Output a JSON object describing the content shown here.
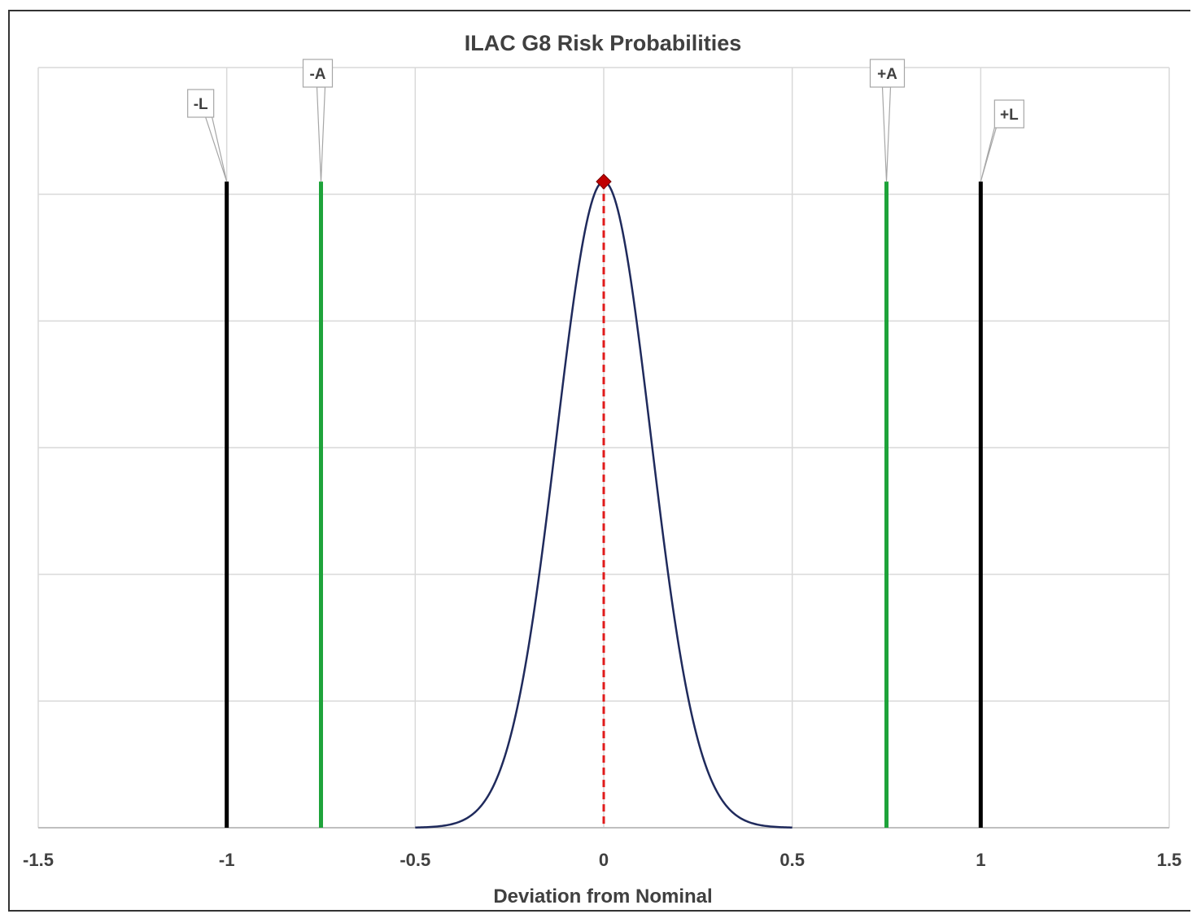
{
  "chart_data": {
    "type": "line",
    "title": "ILAC G8 Risk Probabilities",
    "xlabel": "Deviation from Nominal",
    "ylabel": "",
    "xlim": [
      -1.5,
      1.5
    ],
    "ylim": [
      0,
      1.2
    ],
    "x_ticks": [
      "-1.5",
      "-1",
      "-0.5",
      "0",
      "0.5",
      "1",
      "1.5"
    ],
    "x_tick_values": [
      -1.5,
      -1,
      -0.5,
      0,
      0.5,
      1,
      1.5
    ],
    "y_gridlines": [
      0.2,
      0.4,
      0.6,
      0.8,
      1.0,
      1.2
    ],
    "grid": true,
    "distribution": {
      "mean": 0,
      "sigma": 0.125,
      "x_range": [
        -0.5,
        0.5
      ],
      "peak": 1.02,
      "color": "#1f2a5c"
    },
    "mean_marker": {
      "x": 0,
      "y": 1.02,
      "color": "#c00000"
    },
    "limit_lines": [
      {
        "label": "-L",
        "x": -1,
        "y_top": 1.02,
        "color": "#000000"
      },
      {
        "label": "-A",
        "x": -0.75,
        "y_top": 1.02,
        "color": "#1ea33a"
      },
      {
        "label": "+A",
        "x": 0.75,
        "y_top": 1.02,
        "color": "#1ea33a"
      },
      {
        "label": "+L",
        "x": 1,
        "y_top": 1.02,
        "color": "#000000"
      }
    ]
  }
}
